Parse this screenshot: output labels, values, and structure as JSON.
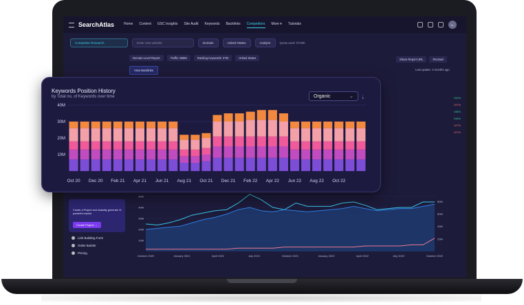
{
  "topbar": {
    "logo": "SearchAtlas",
    "nav": [
      {
        "label": "Home",
        "icon": "home-icon"
      },
      {
        "label": "Content",
        "icon": "pencil-icon"
      },
      {
        "label": "GSC Insights",
        "icon": "gsc-icon"
      },
      {
        "label": "Site Audit",
        "icon": "audit-icon"
      },
      {
        "label": "Keywords",
        "icon": "key-icon"
      },
      {
        "label": "Backlinks",
        "icon": "link-icon"
      },
      {
        "label": "Competitors",
        "icon": "competitors-icon",
        "active": true
      },
      {
        "label": "More ▾",
        "icon": "more-icon"
      },
      {
        "label": "Tutorials",
        "icon": "tutorials-icon"
      }
    ],
    "avatar": "KL"
  },
  "toolbar": {
    "section": "Competitor Research",
    "search_placeholder": "Enter new website",
    "mode": "Domain",
    "country": "United States",
    "analyze": "Analyze",
    "quota": "Quota used: 0/740K"
  },
  "chips": [
    "Domain-Level Report",
    "Traffic: 858M",
    "Ranking Keywords: 37M",
    "United States"
  ],
  "view_backlinks": "View Backlinks",
  "share": "Share Report URL",
  "recrawl": "Recrawl",
  "last_update": "Last update: 3 months ago",
  "side_metrics": [
    {
      "label": "t Rank",
      "value": "192%",
      "trend": "up"
    },
    {
      "label": "Traffic",
      "value": "197%",
      "trend": "down"
    },
    {
      "label": "",
      "value": "198%",
      "trend": "up"
    },
    {
      "label": "g Distance",
      "value": "198%",
      "trend": "up"
    },
    {
      "label": "lopmental",
      "value": "197%",
      "trend": "down"
    },
    {
      "label": "Traffic",
      "value": "197%",
      "trend": "down"
    }
  ],
  "promo": {
    "text": "Create a Project and instantly generate 11 powerful reports",
    "button": "Create Project →"
  },
  "side_links": [
    "Link Building Form",
    "Order Builder",
    "Pricing"
  ],
  "card": {
    "title": "Keywords Position History",
    "subtitle": "by Total no. of Keywords over time",
    "select": "Organic"
  },
  "chart_data": [
    {
      "type": "bar",
      "title": "Keywords Position History",
      "subtitle": "by Total no. of Keywords over time",
      "stacked": true,
      "ylim": [
        0,
        40
      ],
      "yticks": [
        "10M",
        "20M",
        "30M",
        "40M"
      ],
      "categories": [
        "Oct 20",
        "",
        "Dec 20",
        "",
        "",
        "Feb 21",
        "",
        "Apr 21",
        "",
        "Jun 21",
        "",
        "Aug 21",
        "",
        "Oct 21",
        "",
        "Dec 21",
        "",
        "Feb 22",
        "",
        "Apr 22",
        "",
        "Jun 22",
        "",
        "Aug 22",
        "",
        "Oct 22",
        ""
      ],
      "xtick_labels": [
        "Oct 20",
        "Dec 20",
        "Feb 21",
        "Apr 21",
        "Jun 21",
        "Aug 21",
        "Oct 21",
        "Dec 21",
        "Feb 22",
        "Apr 22",
        "Jun 22",
        "Aug 22",
        "Oct 22"
      ],
      "series": [
        {
          "color": "#7c4dd6",
          "values": [
            7,
            7,
            7,
            7,
            7,
            7,
            7,
            7,
            7,
            7,
            5,
            5,
            6,
            8,
            8,
            8,
            8,
            8,
            8,
            8,
            7,
            7,
            7,
            7,
            7,
            7,
            7
          ]
        },
        {
          "color": "#c04cc0",
          "values": [
            6,
            6,
            6,
            6,
            6,
            6,
            6,
            6,
            6,
            6,
            4,
            4,
            4,
            7,
            7,
            7,
            7,
            7,
            7,
            7,
            6,
            6,
            6,
            6,
            6,
            6,
            6
          ]
        },
        {
          "color": "#f05a9a",
          "values": [
            5,
            5,
            5,
            5,
            5,
            5,
            5,
            5,
            5,
            5,
            4,
            4,
            4,
            6,
            6,
            6,
            6,
            6,
            6,
            6,
            5,
            5,
            5,
            5,
            5,
            5,
            5
          ]
        },
        {
          "color": "#f4a0a8",
          "values": [
            8,
            8,
            8,
            8,
            8,
            8,
            8,
            8,
            8,
            8,
            6,
            6,
            6,
            9,
            9,
            9,
            10,
            10,
            10,
            9,
            8,
            8,
            8,
            8,
            8,
            8,
            8
          ]
        },
        {
          "color": "#f3893f",
          "values": [
            4,
            4,
            4,
            4,
            4,
            4,
            4,
            4,
            4,
            4,
            3,
            3,
            3,
            4,
            5,
            5,
            5,
            6,
            6,
            5,
            4,
            4,
            4,
            4,
            4,
            4,
            4
          ]
        }
      ]
    },
    {
      "type": "line",
      "ylim_left": [
        0,
        50
      ],
      "yticks_left": [
        "10M",
        "20M",
        "30M",
        "40M",
        "50M"
      ],
      "yticks_right": [
        "20M",
        "40M",
        "60M",
        "80M"
      ],
      "xtick_labels": [
        "October 2020",
        "January 2021",
        "April 2021",
        "July 2021",
        "October 2021",
        "January 2022",
        "April 2022",
        "July 2022",
        "October 2022"
      ],
      "series": [
        {
          "color": "#39c6e8",
          "values": [
            25,
            24,
            26,
            29,
            33,
            35,
            37,
            38,
            44,
            52,
            47,
            40,
            38,
            44,
            41,
            41,
            41,
            44,
            45,
            42,
            38,
            39,
            40,
            40,
            45,
            45
          ]
        },
        {
          "color": "#2f7de1",
          "values": [
            20,
            21,
            22,
            23,
            26,
            29,
            31,
            34,
            38,
            40,
            37,
            36,
            38,
            37,
            36,
            37,
            38,
            39,
            41,
            39,
            37,
            38,
            39,
            39,
            41,
            43
          ]
        },
        {
          "color": "#f07b94",
          "values": [
            2,
            2,
            2,
            2,
            2,
            2,
            2,
            2,
            3,
            3,
            3,
            3,
            4,
            4,
            4,
            4,
            4,
            4,
            4,
            5,
            5,
            5,
            5,
            6,
            6,
            12
          ]
        }
      ]
    }
  ]
}
